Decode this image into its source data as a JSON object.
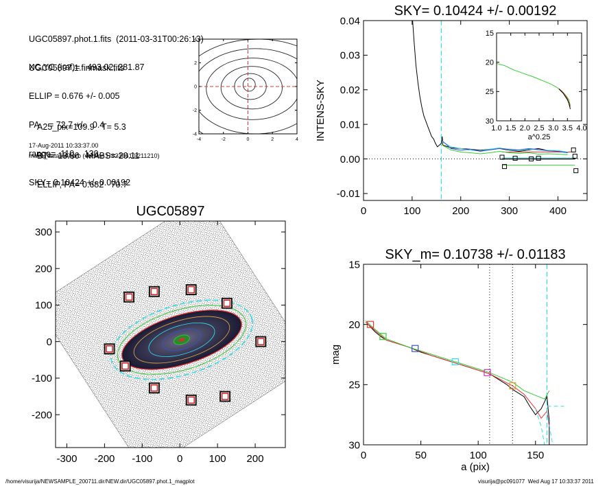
{
  "header": {
    "lines_a": [
      "UGC05897.phot.1.fits  (2011-03-31T00:26:13)",
      "UGC05897.1.finmask.fits"
    ],
    "lines_b": [
      "XC,YC (iraf)=   493.02, 281.87",
      "ELLIP = 0.676 +/- 0.005",
      "PA    = 72.7 +/-   0.4",
      "range=  110.-  130.",
      "SKY= 0.10424 +/- 0.00192"
    ],
    "lines_c": [
      "A25_pix=109.9   T= 5.3",
      "BT=  13.86   MABS=-20.11",
      "ELLIP, PA= 0.682   70.7"
    ],
    "date": "17-Aug-2011 10:33:37.00",
    "program": "make_datalist0.pro (version HS230610/211210)"
  },
  "footer": {
    "path": "/home/visurija/NEWSAMPLE_200711.dir/NEW.dir/UGC05897.phot.1_magplot",
    "user": "visurija@pc091077  Wed Aug 17 10:33:37 2011"
  },
  "colors": {
    "cyan": "#33ddee",
    "red": "#ee3333",
    "green": "#33cc33",
    "blue": "#3355cc",
    "magenta": "#cc33cc",
    "galaxy_dark": "#1a1a33"
  },
  "chart_data": [
    {
      "id": "contour",
      "type": "contour",
      "xlim": [
        -4,
        4
      ],
      "ylim": [
        -4,
        4
      ],
      "xticks": [
        -4,
        -2,
        0,
        2,
        4
      ],
      "yticks": [
        -4,
        -2,
        0,
        2,
        4
      ],
      "crosshair": [
        0,
        0
      ],
      "contours": [
        {
          "cx": 0.1,
          "cy": 0.15,
          "rx": 0.5,
          "ry": 0.55
        },
        {
          "cx": 0.2,
          "cy": 0.0,
          "rx": 1.3,
          "ry": 1.1
        },
        {
          "cx": 0.3,
          "cy": -0.1,
          "rx": 2.5,
          "ry": 1.8
        },
        {
          "cx": 0.4,
          "cy": -0.2,
          "rx": 3.8,
          "ry": 2.6
        },
        {
          "cx": 0.6,
          "cy": -0.4,
          "rx": 5.2,
          "ry": 3.6
        },
        {
          "cx": 0.8,
          "cy": -0.6,
          "rx": 6.6,
          "ry": 4.6
        }
      ]
    },
    {
      "id": "sky",
      "type": "line",
      "title": "SKY= 0.10424 +/- 0.00192",
      "ylabel": "INTENS-SKY",
      "xlim": [
        0,
        460
      ],
      "ylim": [
        -0.012,
        0.04
      ],
      "xticks": [
        0,
        100,
        200,
        300,
        400
      ],
      "yticks": [
        -0.01,
        0.0,
        0.01,
        0.02,
        0.03,
        0.04
      ],
      "ytick_labels": [
        "-0.01",
        "0.00",
        "0.01",
        "0.02",
        "0.03",
        "0.04"
      ],
      "vline": 160,
      "series": [
        {
          "color": "#000000",
          "points": [
            [
              100,
              0.042
            ],
            [
              104,
              0.034
            ],
            [
              108,
              0.027
            ],
            [
              112,
              0.022
            ],
            [
              116,
              0.018
            ],
            [
              120,
              0.015
            ],
            [
              124,
              0.0125
            ],
            [
              128,
              0.011
            ],
            [
              132,
              0.0095
            ],
            [
              136,
              0.008
            ],
            [
              140,
              0.0065
            ],
            [
              144,
              0.0058
            ],
            [
              148,
              0.0045
            ],
            [
              152,
              0.0035
            ],
            [
              156,
              0.004
            ],
            [
              160,
              0.0045
            ],
            [
              162,
              0.0065
            ],
            [
              163,
              0.004
            ],
            [
              180,
              0.0032
            ],
            [
              200,
              0.003
            ],
            [
              220,
              0.0028
            ],
            [
              240,
              0.0025
            ],
            [
              260,
              0.0028
            ],
            [
              280,
              0.003
            ],
            [
              300,
              0.0025
            ],
            [
              320,
              0.0022
            ],
            [
              340,
              0.0026
            ],
            [
              360,
              0.003
            ],
            [
              380,
              0.0024
            ],
            [
              400,
              0.0022
            ],
            [
              420,
              0.0018
            ]
          ]
        },
        {
          "color": "#33ddee",
          "points": [
            [
              162,
              0.005
            ],
            [
              180,
              0.0035
            ],
            [
              200,
              0.003
            ],
            [
              220,
              0.0025
            ],
            [
              240,
              0.0023
            ],
            [
              260,
              0.0028
            ],
            [
              280,
              0.0032
            ],
            [
              300,
              0.0026
            ],
            [
              320,
              0.0024
            ],
            [
              340,
              0.0028
            ],
            [
              360,
              0.0026
            ],
            [
              380,
              0.0025
            ],
            [
              400,
              0.0024
            ],
            [
              420,
              0.002
            ]
          ]
        },
        {
          "color": "#3355cc",
          "points": [
            [
              162,
              0.0052
            ],
            [
              180,
              0.003
            ],
            [
              200,
              0.0025
            ],
            [
              220,
              0.0028
            ],
            [
              240,
              0.0022
            ],
            [
              260,
              0.0026
            ],
            [
              280,
              0.003
            ],
            [
              300,
              0.0028
            ],
            [
              320,
              0.0026
            ],
            [
              340,
              0.003
            ],
            [
              360,
              0.0027
            ],
            [
              380,
              0.0023
            ],
            [
              400,
              0.0022
            ],
            [
              420,
              0.0018
            ]
          ]
        },
        {
          "color": "#33cc33",
          "points": [
            [
              162,
              0.004
            ],
            [
              180,
              0.0026
            ],
            [
              200,
              0.002
            ],
            [
              220,
              0.0018
            ],
            [
              240,
              0.0015
            ],
            [
              260,
              0.0018
            ],
            [
              280,
              0.0022
            ],
            [
              300,
              0.0018
            ],
            [
              320,
              0.0016
            ],
            [
              340,
              0.0018
            ],
            [
              360,
              0.0014
            ],
            [
              380,
              0.0015
            ],
            [
              400,
              0.0014
            ],
            [
              420,
              0.0012
            ]
          ]
        }
      ],
      "hlines": [
        {
          "y": 0.0,
          "x1": 0,
          "x2": 460,
          "style": "dotted",
          "color": "#000000"
        },
        {
          "y": 0.0,
          "x1": 285,
          "x2": 435,
          "style": "solid",
          "color": "#000000",
          "width": 1.4
        },
        {
          "y": 0.002,
          "x1": 285,
          "x2": 435,
          "style": "solid",
          "color": "#ee3333"
        },
        {
          "y": -0.0018,
          "x1": 285,
          "x2": 435,
          "style": "solid",
          "color": "#33cc33"
        },
        {
          "y": 0.0003,
          "x1": 285,
          "x2": 435,
          "style": "solid",
          "color": "#33ddee"
        }
      ],
      "markers": [
        [
          285,
          0.0005
        ],
        [
          290,
          -0.0022
        ],
        [
          312,
          0.0002
        ],
        [
          345,
          0.0
        ],
        [
          360,
          0.0002
        ],
        [
          432,
          0.0026
        ],
        [
          435,
          0.0008
        ],
        [
          437,
          -0.0034
        ]
      ]
    },
    {
      "id": "inset",
      "type": "line",
      "xlabel": "a^0.25",
      "xlim": [
        1.0,
        4.0
      ],
      "ylim_reversed": [
        15,
        30
      ],
      "xticks": [
        1.0,
        1.5,
        2.0,
        2.5,
        3.0,
        3.5,
        4.0
      ],
      "xtick_labels": [
        "1.0",
        "1.5",
        "2.0",
        "2.5",
        "3.0",
        "3.5",
        "4.0"
      ],
      "yticks": [
        15,
        20,
        25,
        30
      ],
      "series": [
        {
          "color": "#33cc33",
          "points": [
            [
              1.0,
              20.2
            ],
            [
              1.3,
              20.6
            ],
            [
              1.6,
              21.3
            ],
            [
              2.0,
              22.0
            ],
            [
              2.3,
              22.5
            ],
            [
              2.6,
              23.1
            ],
            [
              2.9,
              23.7
            ],
            [
              3.1,
              24.2
            ],
            [
              3.3,
              24.9
            ],
            [
              3.45,
              25.7
            ],
            [
              3.55,
              26.4
            ],
            [
              3.6,
              27.4
            ]
          ]
        },
        {
          "color": "#ee3333",
          "points": [
            [
              3.2,
              24.5
            ],
            [
              3.35,
              25.2
            ],
            [
              3.5,
              26.2
            ],
            [
              3.6,
              27.6
            ]
          ]
        },
        {
          "color": "#000000",
          "points": [
            [
              3.2,
              24.55
            ],
            [
              3.35,
              25.3
            ],
            [
              3.5,
              26.4
            ],
            [
              3.55,
              27.0
            ],
            [
              3.6,
              28.0
            ]
          ]
        }
      ]
    },
    {
      "id": "image",
      "type": "image",
      "title": "UGC05897",
      "xlim": [
        -330,
        280
      ],
      "ylim": [
        -290,
        330
      ],
      "xticks": [
        -300,
        -200,
        -100,
        0,
        100,
        200
      ],
      "yticks": [
        -200,
        -100,
        0,
        100,
        200,
        300
      ],
      "tile": {
        "cx": -15,
        "cy": 20,
        "half": 265,
        "angle_deg": 33
      },
      "ellipse": {
        "cx": 5,
        "cy": 5,
        "a": 165,
        "b": 65,
        "angle_deg": 17
      },
      "stars": [
        [
          -135,
          122
        ],
        [
          -68,
          137
        ],
        [
          30,
          142
        ],
        [
          125,
          105
        ],
        [
          -187,
          -20
        ],
        [
          -145,
          -67
        ],
        [
          -68,
          -127
        ],
        [
          30,
          -160
        ],
        [
          120,
          -150
        ],
        [
          215,
          0
        ]
      ]
    },
    {
      "id": "mag",
      "type": "line",
      "title": "SKY_m=  0.10738 +/- 0.01183",
      "xlabel": "a (pix)",
      "ylabel": "mag",
      "xlim": [
        0,
        195
      ],
      "ylim_reversed": [
        15,
        30
      ],
      "xticks": [
        0,
        50,
        100,
        150
      ],
      "yticks": [
        15,
        20,
        25,
        30
      ],
      "vlines": [
        {
          "x": 110,
          "style": "dotted"
        },
        {
          "x": 130,
          "style": "dotted"
        },
        {
          "x": 160,
          "style": "dashed-cyan"
        }
      ],
      "series": [
        {
          "color": "#000000",
          "points": [
            [
              2,
              19.8
            ],
            [
              5,
              20.1
            ],
            [
              10,
              20.6
            ],
            [
              15,
              21.0
            ],
            [
              20,
              21.3
            ],
            [
              30,
              21.6
            ],
            [
              40,
              21.9
            ],
            [
              45,
              22.1
            ],
            [
              50,
              22.3
            ],
            [
              60,
              22.6
            ],
            [
              70,
              22.9
            ],
            [
              80,
              23.2
            ],
            [
              90,
              23.5
            ],
            [
              100,
              23.8
            ],
            [
              110,
              24.1
            ],
            [
              115,
              24.4
            ],
            [
              120,
              24.7
            ],
            [
              125,
              25.0
            ],
            [
              130,
              25.4
            ],
            [
              135,
              25.7
            ],
            [
              140,
              26.0
            ],
            [
              145,
              26.8
            ],
            [
              150,
              27.5
            ],
            [
              155,
              27.0
            ],
            [
              160,
              26.0
            ],
            [
              162,
              28.0
            ],
            [
              162,
              30.0
            ]
          ]
        },
        {
          "color": "#ee3333",
          "points": [
            [
              2,
              19.8
            ],
            [
              10,
              20.5
            ],
            [
              20,
              21.3
            ],
            [
              40,
              21.9
            ],
            [
              60,
              22.6
            ],
            [
              80,
              23.2
            ],
            [
              100,
              23.8
            ],
            [
              110,
              24.1
            ],
            [
              120,
              24.6
            ],
            [
              130,
              25.1
            ],
            [
              140,
              25.8
            ],
            [
              145,
              26.4
            ],
            [
              150,
              27.0
            ],
            [
              155,
              27.8
            ],
            [
              160,
              27.2
            ],
            [
              162,
              28.5
            ]
          ]
        },
        {
          "color": "#33cc33",
          "points": [
            [
              2,
              19.7
            ],
            [
              10,
              20.4
            ],
            [
              20,
              21.2
            ],
            [
              40,
              21.9
            ],
            [
              60,
              22.5
            ],
            [
              80,
              23.1
            ],
            [
              100,
              23.7
            ],
            [
              110,
              24.0
            ],
            [
              120,
              24.4
            ],
            [
              130,
              24.8
            ],
            [
              140,
              25.5
            ],
            [
              150,
              25.9
            ],
            [
              158,
              26.2
            ],
            [
              162,
              25.5
            ]
          ]
        },
        {
          "color": "#33ddee",
          "points": [
            [
              150,
              27.0
            ],
            [
              155,
              28.5
            ],
            [
              158,
              30.0
            ]
          ],
          "dashed": true
        },
        {
          "color": "#33ddee",
          "points": [
            [
              160,
              27.2
            ],
            [
              165,
              30.0
            ]
          ],
          "dashed": true
        },
        {
          "color": "#33ddee",
          "points": [
            [
              160,
              26.8
            ],
            [
              175,
              26.8
            ]
          ],
          "dashed": true
        }
      ],
      "markers": [
        {
          "x": 6,
          "y": 20.0,
          "color": "#ee3333"
        },
        {
          "x": 17,
          "y": 21.0,
          "color": "#33cc33"
        },
        {
          "x": 45,
          "y": 22.0,
          "color": "#3355cc"
        },
        {
          "x": 80,
          "y": 23.1,
          "color": "#33ddee"
        },
        {
          "x": 108,
          "y": 24.0,
          "color": "#cc33cc"
        },
        {
          "x": 130,
          "y": 25.1,
          "color": "#ee9933"
        }
      ]
    }
  ]
}
